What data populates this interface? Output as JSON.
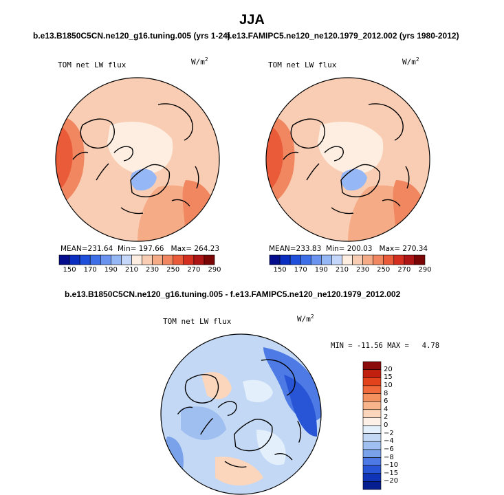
{
  "page": {
    "title": "JJA",
    "subtitle_left": "b.e13.B1850C5CN.ne120_g16.tuning.005 (yrs 1-24)",
    "subtitle_right": "f.e13.FAMIPC5.ne120_ne120.1979_2012.002 (yrs 1980-2012)",
    "subtitle_diff": "b.e13.B1850C5CN.ne120_g16.tuning.005 - f.e13.FAMIPC5.ne120_ne120.1979_2012.002"
  },
  "chart_data": [
    {
      "type": "heatmap",
      "projection": "polar-stereographic-north",
      "title": "TOM net LW flux",
      "units": "W/m",
      "units_sup": "2",
      "stats": {
        "mean_label": "MEAN=",
        "mean": "231.64",
        "min_label": "Min=",
        "min": "197.66",
        "max_label": "Max=",
        "max": "264.23"
      },
      "colorbar": {
        "orientation": "horizontal",
        "levels": [
          "150",
          "170",
          "190",
          "210",
          "230",
          "250",
          "270",
          "290"
        ],
        "colors": [
          "#050d8c",
          "#0a2fc0",
          "#1f50db",
          "#3c6fe8",
          "#6a93ef",
          "#96b7f5",
          "#c4d7fa",
          "#fdeee1",
          "#f9cdb3",
          "#f5ab86",
          "#f08760",
          "#ea5c39",
          "#d42f1e",
          "#ad1414",
          "#7a0505"
        ]
      }
    },
    {
      "type": "heatmap",
      "projection": "polar-stereographic-north",
      "title": "TOM net LW flux",
      "units": "W/m",
      "units_sup": "2",
      "stats": {
        "mean_label": "MEAN=",
        "mean": "233.83",
        "min_label": "Min=",
        "min": "200.03",
        "max_label": "Max=",
        "max": "270.34"
      },
      "colorbar": {
        "orientation": "horizontal",
        "levels": [
          "150",
          "170",
          "190",
          "210",
          "230",
          "250",
          "270",
          "290"
        ],
        "colors": [
          "#050d8c",
          "#0a2fc0",
          "#1f50db",
          "#3c6fe8",
          "#6a93ef",
          "#96b7f5",
          "#c4d7fa",
          "#fdeee1",
          "#f9cdb3",
          "#f5ab86",
          "#f08760",
          "#ea5c39",
          "#d42f1e",
          "#ad1414",
          "#7a0505"
        ]
      }
    },
    {
      "type": "heatmap",
      "projection": "polar-stereographic-north",
      "title": "TOM net LW flux",
      "units": "W/m",
      "units_sup": "2",
      "stats": {
        "min_label": "MIN =",
        "min": "-11.56",
        "max_label": "MAX =",
        "max": "4.78"
      },
      "colorbar": {
        "orientation": "vertical",
        "levels": [
          "20",
          "15",
          "10",
          "8",
          "6",
          "4",
          "2",
          "0",
          "−2",
          "−4",
          "−6",
          "−8",
          "−10",
          "−15",
          "−20"
        ],
        "colors": [
          "#8b0a0a",
          "#c2200f",
          "#e3431c",
          "#f06a3b",
          "#f5905f",
          "#f8b48b",
          "#fbd6bd",
          "#fdf0e6",
          "#e3effb",
          "#c2d8f5",
          "#9fbff0",
          "#7aa2ea",
          "#4d7ae4",
          "#2855d6",
          "#0f34b8",
          "#061f90"
        ]
      }
    }
  ]
}
